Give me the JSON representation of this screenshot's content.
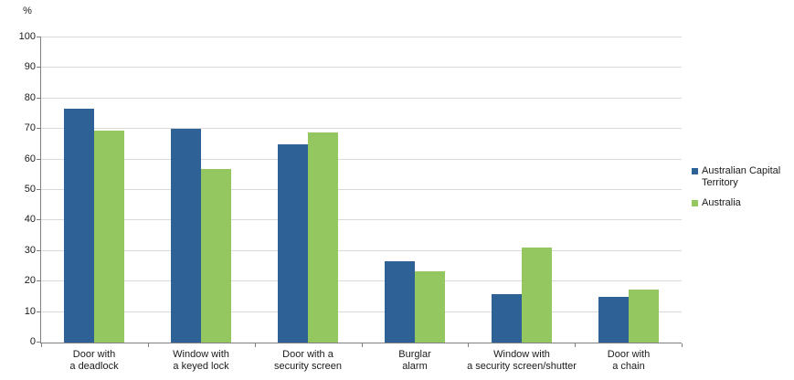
{
  "chart_data": {
    "type": "bar",
    "title": "",
    "unit_label": "%",
    "xlabel": "",
    "ylabel": "%",
    "ylim": [
      0,
      100
    ],
    "ytick_step": 10,
    "grid": true,
    "legend_position": "right",
    "categories": [
      "Door with a deadlock",
      "Window with a keyed lock",
      "Door with a security screen",
      "Burglar alarm",
      "Window with a security screen/shutter",
      "Door with a chain"
    ],
    "category_label_lines": [
      [
        "Door with",
        "a deadlock"
      ],
      [
        "Window with",
        "a keyed lock"
      ],
      [
        "Door with a",
        "security screen"
      ],
      [
        "Burglar",
        "alarm"
      ],
      [
        "Window with",
        "a security screen/shutter"
      ],
      [
        "Door with",
        "a chain"
      ]
    ],
    "series": [
      {
        "name": "Australian Capital Territory",
        "color": "#2e6196",
        "values": [
          76.5,
          70,
          65,
          26.5,
          16,
          15
        ]
      },
      {
        "name": "Australia",
        "color": "#94c75f",
        "values": [
          69.5,
          57,
          69,
          23.5,
          31,
          17.5
        ]
      }
    ]
  },
  "colors": {
    "gridline": "#d9d9d9",
    "axis": "#808080",
    "text": "#1a1a1a",
    "background": "#ffffff"
  }
}
